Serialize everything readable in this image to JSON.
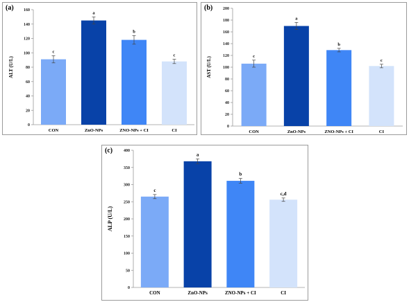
{
  "colors": {
    "bars": [
      "#7baaf7",
      "#0842a8",
      "#3f86f6",
      "#d3e3fb"
    ],
    "axis": "#9a9a9a",
    "error": "#444444"
  },
  "chart_data": [
    {
      "type": "bar",
      "panel_label": "(a)",
      "categories": [
        "CON",
        "ZnO-NPs",
        "ZNO-NPs + CI",
        "CI"
      ],
      "values": [
        91,
        145,
        118,
        88
      ],
      "errors": [
        5,
        5,
        6,
        3
      ],
      "letters": [
        "c",
        "a",
        "b",
        "c"
      ],
      "ylabel": "ALT (U/L)",
      "ylim": [
        0,
        160
      ],
      "yticks": [
        0,
        20,
        40,
        60,
        80,
        100,
        120,
        140,
        160
      ],
      "grid": false,
      "legend": "none"
    },
    {
      "type": "bar",
      "panel_label": "(b)",
      "categories": [
        "CON",
        "ZnO-NPs",
        "ZNO-NPs + CI",
        "CI"
      ],
      "values": [
        106,
        170,
        129,
        102
      ],
      "errors": [
        6,
        6,
        3,
        3
      ],
      "letters": [
        "c",
        "a",
        "b",
        "c"
      ],
      "ylabel": "AST (U/L)",
      "ylim": [
        0,
        200
      ],
      "yticks": [
        0,
        20,
        40,
        60,
        80,
        100,
        120,
        140,
        160,
        180,
        200
      ],
      "grid": false,
      "legend": "none"
    },
    {
      "type": "bar",
      "panel_label": "(c)",
      "categories": [
        "CON",
        "ZnO-NPs",
        "ZNO-NPs + CI",
        "CI"
      ],
      "values": [
        265,
        368,
        311,
        256
      ],
      "errors": [
        6,
        7,
        7,
        5
      ],
      "letters": [
        "c",
        "a",
        "b",
        "c,d"
      ],
      "ylabel": "ALP (U/L)",
      "ylim": [
        0,
        400
      ],
      "yticks": [
        0,
        50,
        100,
        150,
        200,
        250,
        300,
        350,
        400
      ],
      "grid": false,
      "legend": "none"
    }
  ]
}
